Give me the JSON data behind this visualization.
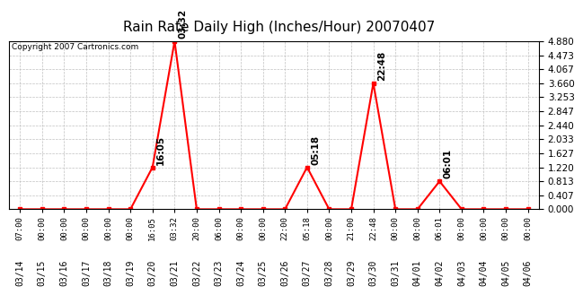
{
  "title": "Rain Rate Daily High (Inches/Hour) 20070407",
  "copyright": "Copyright 2007 Cartronics.com",
  "background_color": "#ffffff",
  "plot_bg_color": "#ffffff",
  "line_color": "#ff0000",
  "grid_color": "#c0c0c0",
  "yticks": [
    0.0,
    0.407,
    0.813,
    1.22,
    1.627,
    2.033,
    2.44,
    2.847,
    3.253,
    3.66,
    4.067,
    4.473,
    4.88
  ],
  "ylim": [
    0.0,
    4.88
  ],
  "data_points": [
    {
      "date": "03/14",
      "value": 0.0,
      "label": null,
      "time": "07:00"
    },
    {
      "date": "03/15",
      "value": 0.0,
      "label": null,
      "time": "00:00"
    },
    {
      "date": "03/16",
      "value": 0.0,
      "label": null,
      "time": "00:00"
    },
    {
      "date": "03/17",
      "value": 0.0,
      "label": null,
      "time": "00:00"
    },
    {
      "date": "03/18",
      "value": 0.0,
      "label": null,
      "time": "00:00"
    },
    {
      "date": "03/19",
      "value": 0.0,
      "label": null,
      "time": "00:00"
    },
    {
      "date": "03/20",
      "value": 1.22,
      "label": "16:05",
      "time": "16:05"
    },
    {
      "date": "03/21",
      "value": 4.88,
      "label": "03:32",
      "time": "03:32"
    },
    {
      "date": "03/22",
      "value": 0.0,
      "label": null,
      "time": "20:00"
    },
    {
      "date": "03/23",
      "value": 0.0,
      "label": null,
      "time": "06:00"
    },
    {
      "date": "03/24",
      "value": 0.0,
      "label": null,
      "time": "00:00"
    },
    {
      "date": "03/25",
      "value": 0.0,
      "label": null,
      "time": "00:00"
    },
    {
      "date": "03/26",
      "value": 0.0,
      "label": null,
      "time": "22:00"
    },
    {
      "date": "03/27",
      "value": 1.22,
      "label": "05:18",
      "time": "05:18"
    },
    {
      "date": "03/28",
      "value": 0.0,
      "label": null,
      "time": "00:00"
    },
    {
      "date": "03/29",
      "value": 0.0,
      "label": null,
      "time": "21:00"
    },
    {
      "date": "03/30",
      "value": 3.66,
      "label": "22:48",
      "time": "22:48"
    },
    {
      "date": "03/31",
      "value": 0.0,
      "label": null,
      "time": "00:00"
    },
    {
      "date": "04/01",
      "value": 0.0,
      "label": null,
      "time": "00:00"
    },
    {
      "date": "04/02",
      "value": 0.813,
      "label": "06:01",
      "time": "06:01"
    },
    {
      "date": "04/03",
      "value": 0.0,
      "label": null,
      "time": "00:00"
    },
    {
      "date": "04/04",
      "value": 0.0,
      "label": null,
      "time": "00:00"
    },
    {
      "date": "04/05",
      "value": 0.0,
      "label": null,
      "time": "00:00"
    },
    {
      "date": "04/06",
      "value": 0.0,
      "label": null,
      "time": "00:00"
    }
  ]
}
